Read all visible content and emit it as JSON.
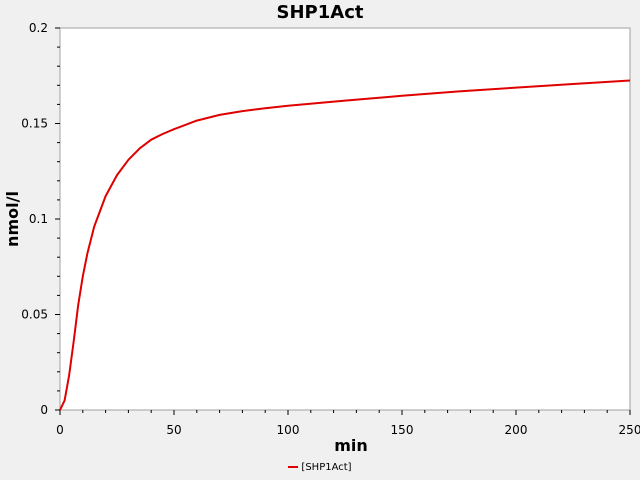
{
  "chart_data": {
    "type": "line",
    "title": "SHP1Act",
    "xlabel": "min",
    "ylabel": "nmol/l",
    "xlim": [
      0,
      250
    ],
    "ylim": [
      0,
      0.2
    ],
    "x_ticks": [
      0,
      50,
      100,
      150,
      200,
      250
    ],
    "y_ticks": [
      0,
      0.05,
      0.1,
      0.15,
      0.2
    ],
    "x_tick_labels": [
      "0",
      "50",
      "100",
      "150",
      "200",
      "250"
    ],
    "y_tick_labels": [
      "0",
      "0.05",
      "0.1",
      "0.15",
      "0.2"
    ],
    "legend_position": "bottom-center",
    "grid": false,
    "colors": {
      "series": "#e00000",
      "plot_bg": "#ffffff",
      "page_bg": "#f0f0f0"
    },
    "series": [
      {
        "name": "[SHP1Act]",
        "x": [
          0,
          2,
          4,
          6,
          8,
          10,
          12,
          15,
          20,
          25,
          30,
          35,
          40,
          45,
          50,
          60,
          70,
          80,
          90,
          100,
          125,
          150,
          175,
          200,
          225,
          250
        ],
        "y": [
          0,
          0.005,
          0.018,
          0.036,
          0.055,
          0.07,
          0.082,
          0.096,
          0.112,
          0.123,
          0.131,
          0.137,
          0.1415,
          0.1445,
          0.147,
          0.1515,
          0.1545,
          0.1565,
          0.158,
          0.1593,
          0.162,
          0.1645,
          0.1668,
          0.1688,
          0.1707,
          0.1725
        ]
      }
    ]
  }
}
